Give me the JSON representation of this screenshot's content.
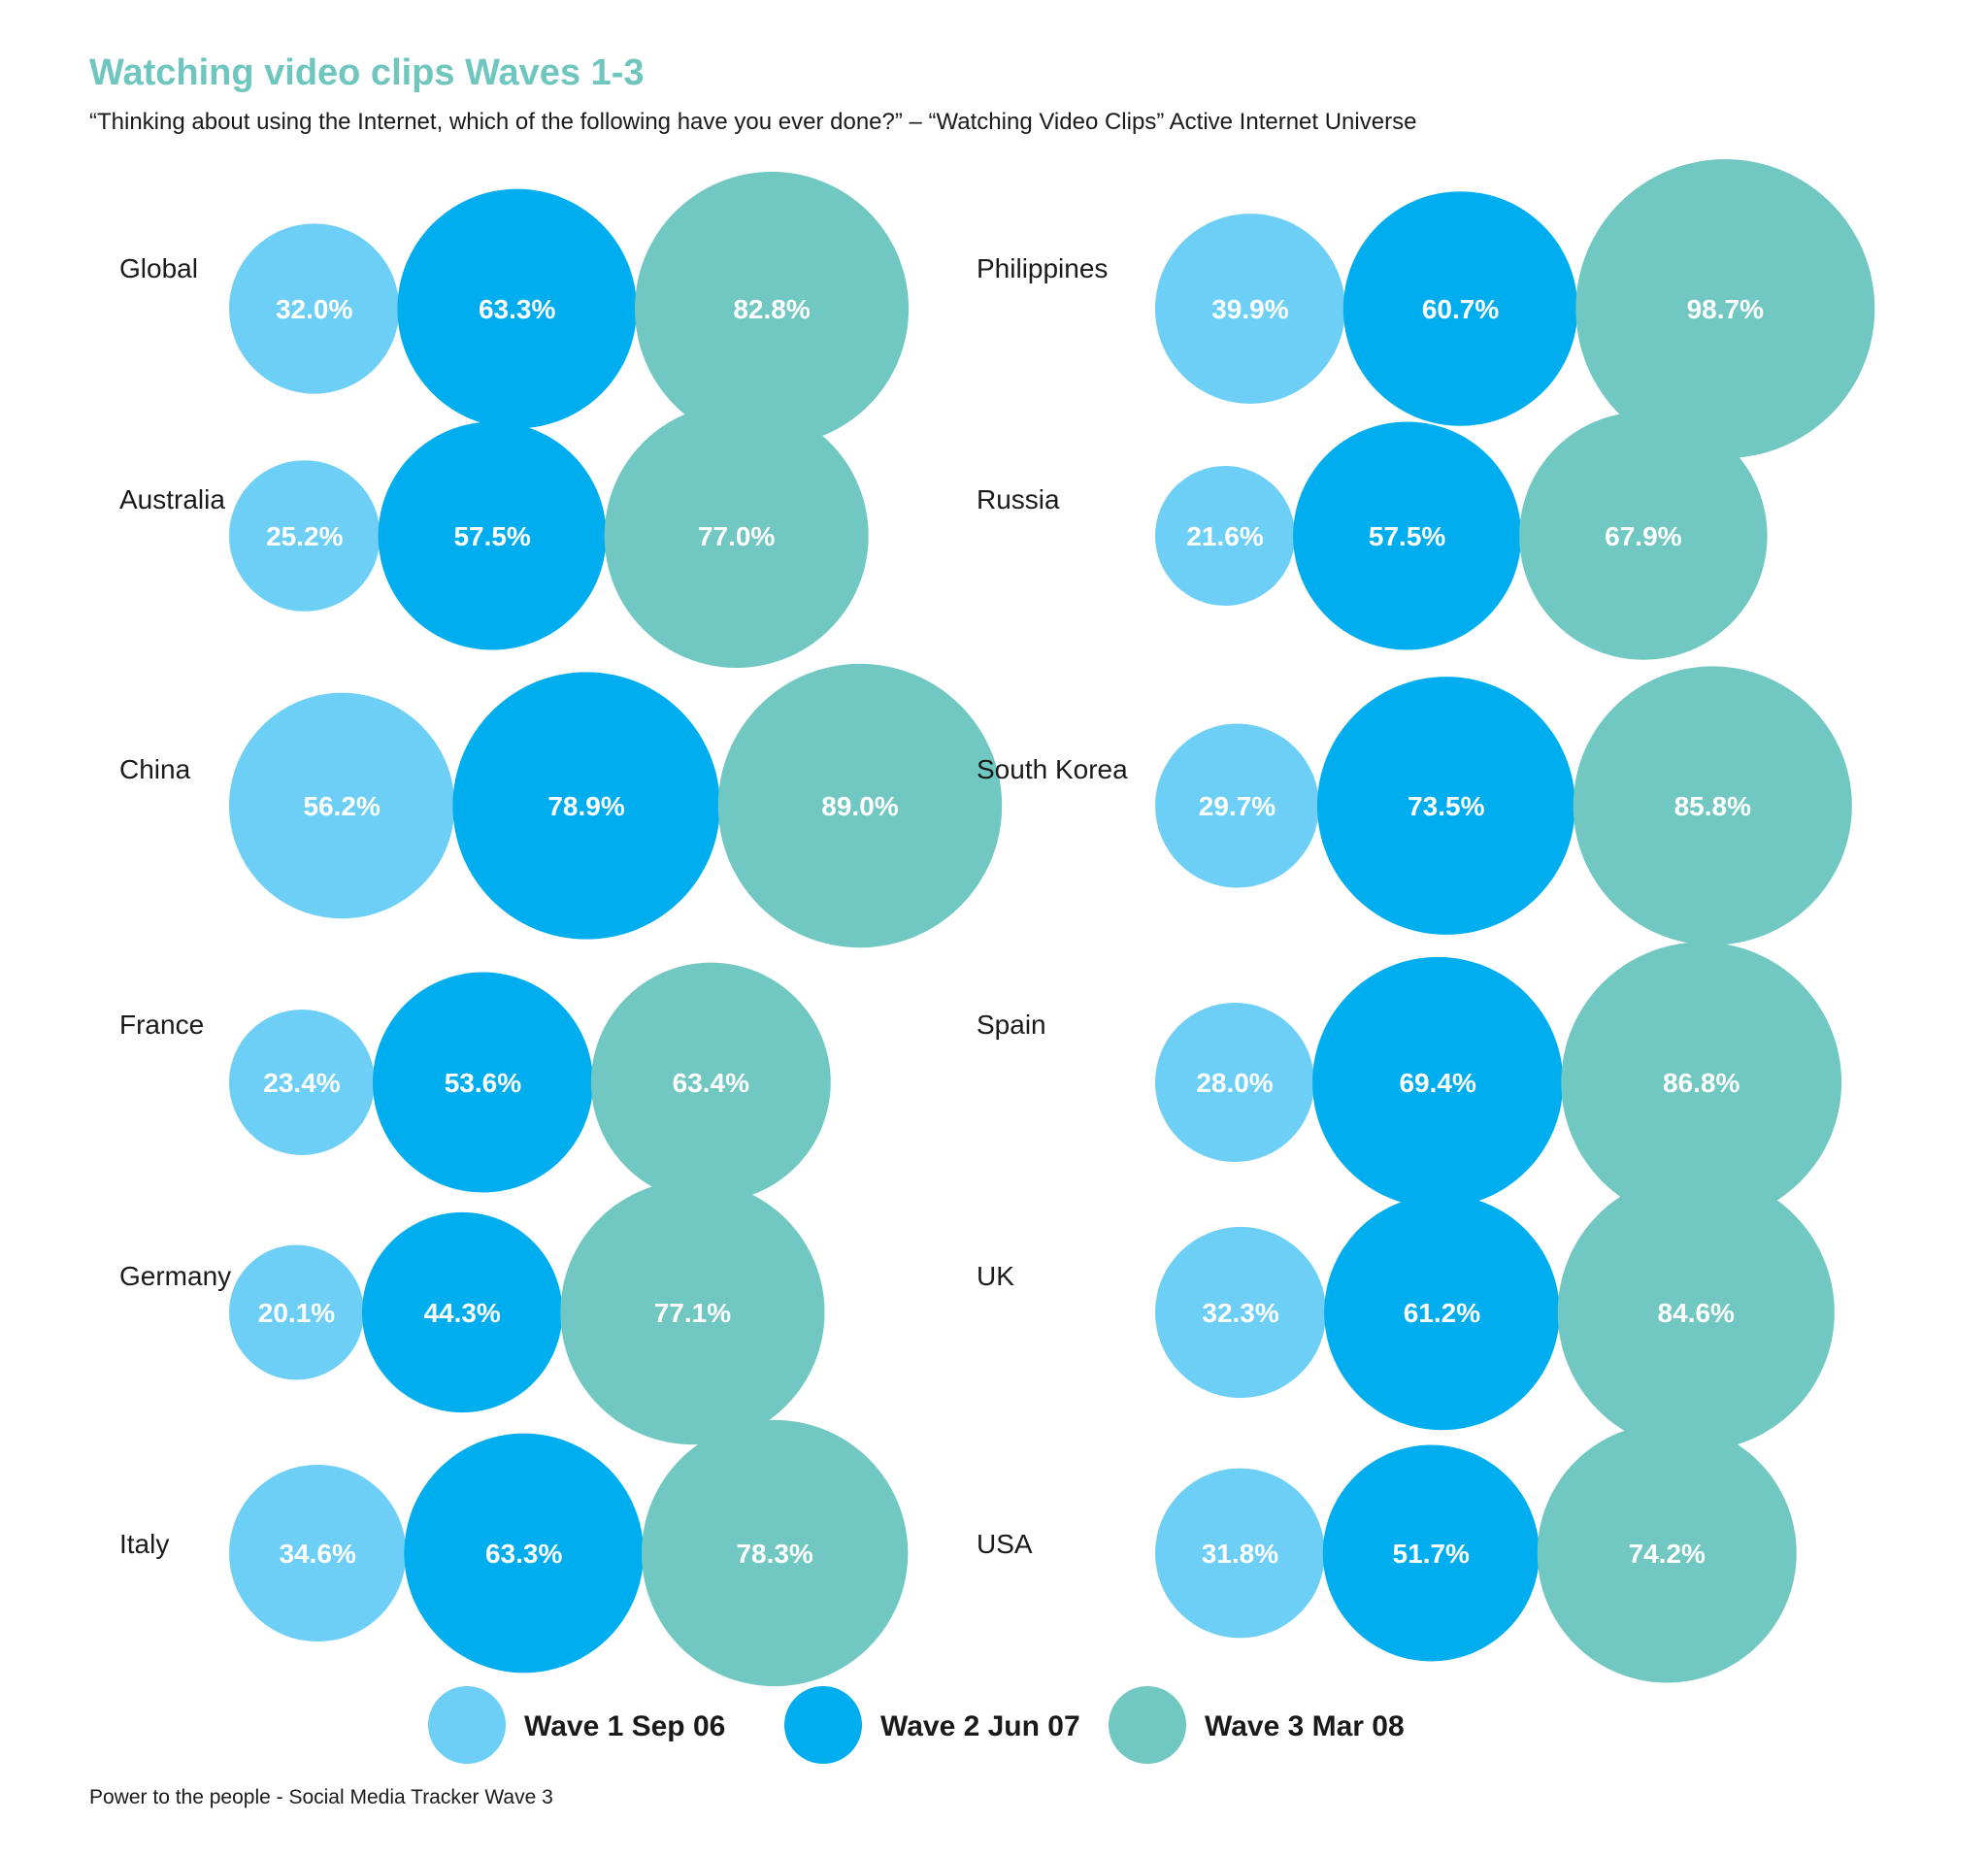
{
  "chart_data": {
    "type": "bubble",
    "title": "Watching video clips Waves 1-3",
    "subtitle": "“Thinking about using the Internet, which of the following have you ever done?” – “Watching Video Clips” Active Internet Universe",
    "series": [
      {
        "name": "Wave 1 Sep 06",
        "color": "#6dcff6"
      },
      {
        "name": "Wave 2 Jun 07",
        "color": "#00aeef"
      },
      {
        "name": "Wave 3 Mar 08",
        "color": "#71c7c1"
      }
    ],
    "countries": [
      {
        "name": "Global",
        "values": [
          32.0,
          63.3,
          82.8
        ],
        "labels": [
          "32.0%",
          "63.3%",
          "82.8%"
        ]
      },
      {
        "name": "Australia",
        "values": [
          25.2,
          57.5,
          77.0
        ],
        "labels": [
          "25.2%",
          "57.5%",
          "77.0%"
        ]
      },
      {
        "name": "China",
        "values": [
          56.2,
          78.9,
          89.0
        ],
        "labels": [
          "56.2%",
          "78.9%",
          "89.0%"
        ]
      },
      {
        "name": "France",
        "values": [
          23.4,
          53.6,
          63.4
        ],
        "labels": [
          "23.4%",
          "53.6%",
          "63.4%"
        ]
      },
      {
        "name": "Germany",
        "values": [
          20.1,
          44.3,
          77.1
        ],
        "labels": [
          "20.1%",
          "44.3%",
          "77.1%"
        ]
      },
      {
        "name": "Italy",
        "values": [
          34.6,
          63.3,
          78.3
        ],
        "labels": [
          "34.6%",
          "63.3%",
          "78.3%"
        ]
      },
      {
        "name": "Philippines",
        "values": [
          39.9,
          60.7,
          98.7
        ],
        "labels": [
          "39.9%",
          "60.7%",
          "98.7%"
        ]
      },
      {
        "name": "Russia",
        "values": [
          21.6,
          57.5,
          67.9
        ],
        "labels": [
          "21.6%",
          "57.5%",
          "67.9%"
        ]
      },
      {
        "name": "South Korea",
        "values": [
          29.7,
          73.5,
          85.8
        ],
        "labels": [
          "29.7%",
          "73.5%",
          "85.8%"
        ]
      },
      {
        "name": "Spain",
        "values": [
          28.0,
          69.4,
          86.8
        ],
        "labels": [
          "28.0%",
          "69.4%",
          "86.8%"
        ]
      },
      {
        "name": "UK",
        "values": [
          32.3,
          61.2,
          84.6
        ],
        "labels": [
          "32.3%",
          "61.2%",
          "84.6%"
        ]
      },
      {
        "name": "USA",
        "values": [
          31.8,
          51.7,
          74.2
        ],
        "labels": [
          "31.8%",
          "51.7%",
          "74.2%"
        ]
      }
    ]
  },
  "footer": {
    "source": "Power to the people - Social Media Tracker Wave 3"
  }
}
